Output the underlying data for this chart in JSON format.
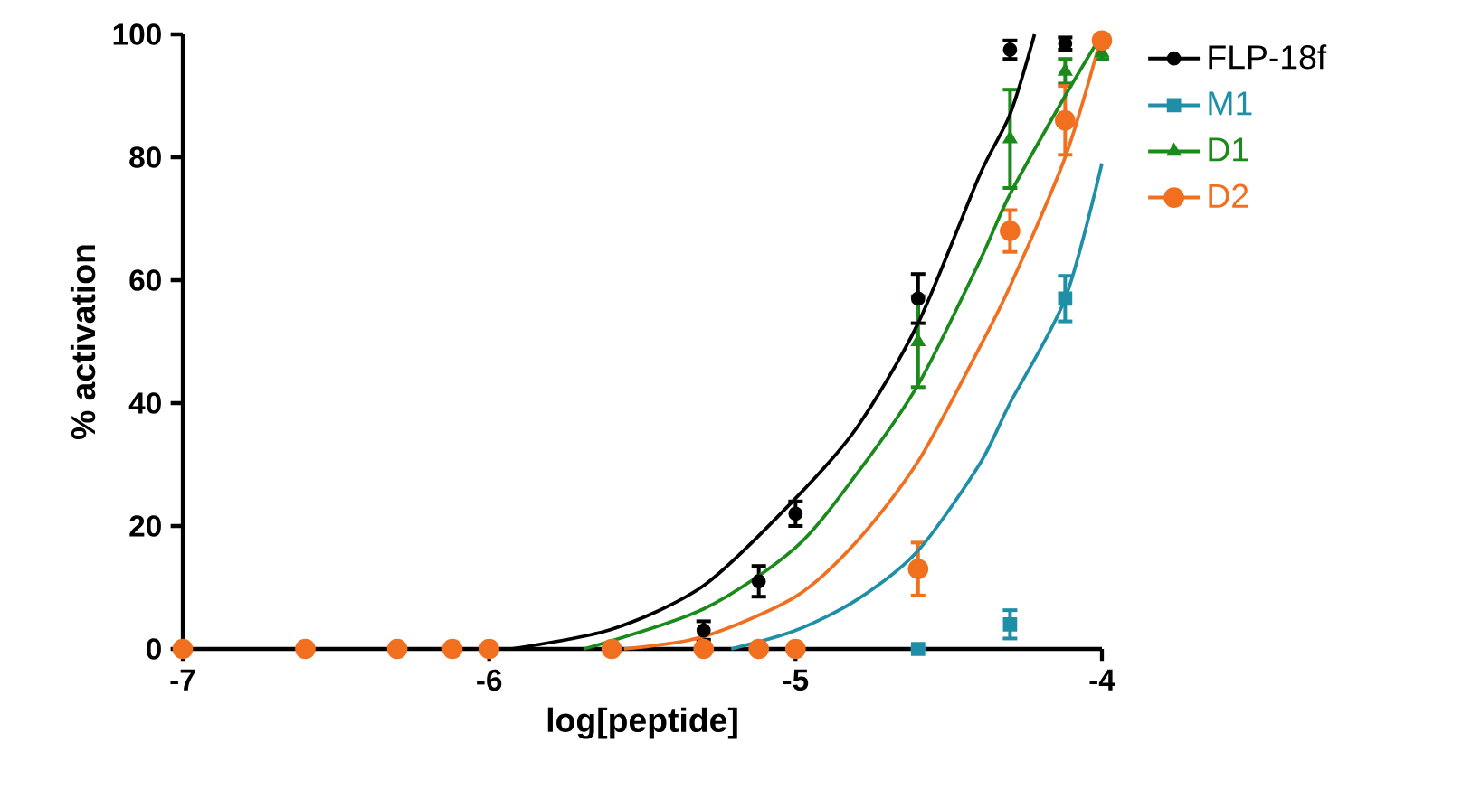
{
  "chart_data": {
    "type": "scatter",
    "xlabel": "log[peptide]",
    "ylabel": "% activation",
    "x": [
      -7,
      -6.6,
      -6.3,
      -6.12,
      -6,
      -5.6,
      -5.3,
      -5.12,
      -5,
      -4.6,
      -4.3,
      -4.12,
      -4
    ],
    "xlim": [
      -7,
      -4
    ],
    "xticks": [
      -7,
      -6,
      -5,
      -4
    ],
    "ylim": [
      0,
      100
    ],
    "yticks": [
      0,
      20,
      40,
      60,
      80,
      100
    ],
    "grid": false,
    "legend": "top right",
    "series": [
      {
        "name": "FLP-18f",
        "color": "#000000",
        "marker": "circle",
        "values": [
          null,
          null,
          null,
          null,
          null,
          null,
          3,
          11,
          22,
          57,
          97.5,
          98.5,
          null
        ],
        "errors": [
          null,
          null,
          null,
          null,
          null,
          null,
          1.5,
          2.5,
          2,
          4,
          1.5,
          1,
          null
        ]
      },
      {
        "name": "M1",
        "color": "#1f8fa8",
        "marker": "square",
        "values": [
          null,
          null,
          null,
          null,
          null,
          null,
          null,
          null,
          null,
          0,
          4,
          57,
          null
        ],
        "errors": [
          null,
          null,
          null,
          null,
          null,
          null,
          null,
          null,
          null,
          null,
          2.3,
          3.7,
          null
        ]
      },
      {
        "name": "D1",
        "color": "#1a8a1a",
        "marker": "triangle",
        "values": [
          null,
          null,
          null,
          null,
          null,
          null,
          null,
          null,
          null,
          50,
          83,
          94,
          97
        ],
        "errors": [
          null,
          null,
          null,
          null,
          null,
          null,
          null,
          null,
          null,
          7.4,
          8,
          2,
          1
        ]
      },
      {
        "name": "D2",
        "color": "#f07020",
        "marker": "circle",
        "values": [
          0,
          0,
          0,
          0,
          0,
          0,
          0,
          0,
          0,
          13,
          68,
          86,
          99
        ],
        "errors": [
          null,
          null,
          null,
          null,
          null,
          null,
          null,
          null,
          null,
          4.3,
          3.4,
          5.6,
          1
        ]
      },
      {
        "type": "line",
        "color": "#000000",
        "x": [
          -5.93,
          -5.6,
          -5.3,
          -5,
          -4.8,
          -4.6,
          -4.4,
          -4.3,
          -4.22
        ],
        "values": [
          0,
          3.2,
          10.3,
          24.5,
          36,
          53,
          77,
          87,
          100
        ]
      },
      {
        "type": "line",
        "color": "#1f8fa8",
        "x": [
          -5.21,
          -5,
          -4.8,
          -4.6,
          -4.4,
          -4.3,
          -4.12,
          -4
        ],
        "values": [
          0,
          3,
          8,
          16,
          30,
          40,
          57,
          79
        ]
      },
      {
        "type": "line",
        "color": "#1a8a1a",
        "x": [
          -5.69,
          -5.3,
          -5,
          -4.8,
          -4.6,
          -4.4,
          -4.3,
          -4.12,
          -4
        ],
        "values": [
          0,
          6.5,
          16.5,
          28.5,
          43,
          63,
          74,
          90,
          100
        ]
      },
      {
        "type": "line",
        "color": "#f07020",
        "x": [
          -5.56,
          -5.3,
          -5,
          -4.8,
          -4.6,
          -4.4,
          -4.3,
          -4.12,
          -4
        ],
        "values": [
          0,
          2,
          8.5,
          17.5,
          30.5,
          49,
          59,
          80,
          100
        ]
      }
    ]
  }
}
